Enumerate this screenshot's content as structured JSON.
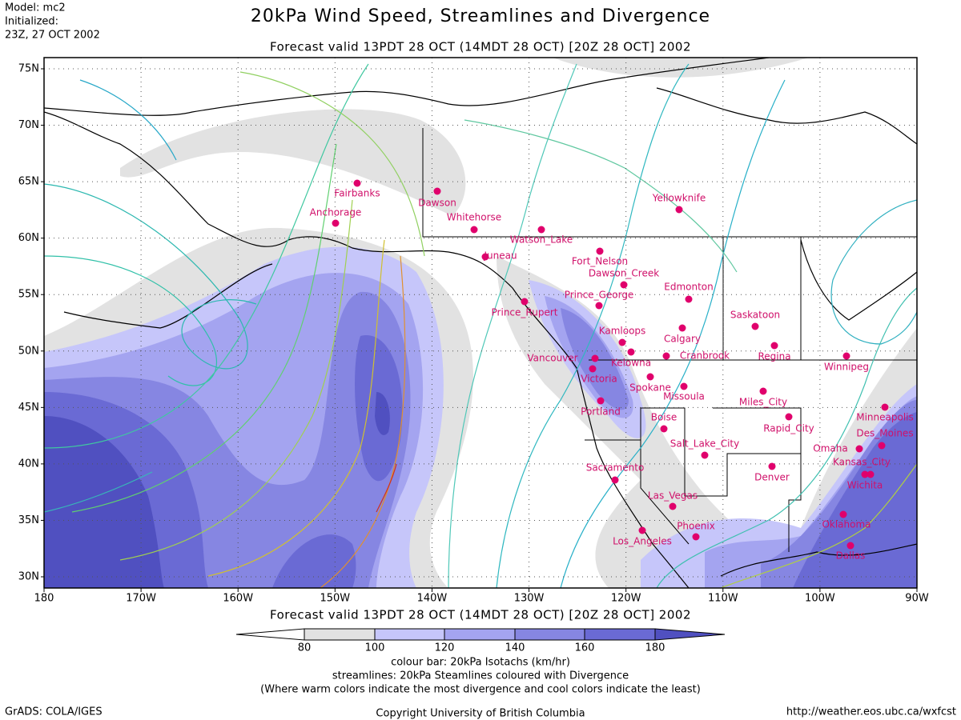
{
  "header": {
    "model": "Model: mc2",
    "initialized": "Initialized:",
    "init_time": "23Z, 27 OCT 2002",
    "title": "20kPa Wind Speed, Streamlines and Divergence",
    "valid_top": "Forecast valid 13PDT 28 OCT (14MDT 28 OCT) [20Z 28 OCT] 2002",
    "valid_bottom": "Forecast valid 13PDT 28 OCT (14MDT 28 OCT) [20Z 28 OCT] 2002"
  },
  "map": {
    "lat_labels": [
      "75N",
      "70N",
      "65N",
      "60N",
      "55N",
      "50N",
      "45N",
      "40N",
      "35N",
      "30N"
    ],
    "lon_labels": [
      "180",
      "170W",
      "160W",
      "150W",
      "140W",
      "130W",
      "120W",
      "110W",
      "100W",
      "90W"
    ],
    "cities": [
      "Fairbanks",
      "Dawson",
      "Anchorage",
      "Whitehorse",
      "Watson_Lake",
      "Juneau",
      "Fort_Nelson",
      "Dawson_Creek",
      "Prince_George",
      "Prince_Rupert",
      "Yellowknife",
      "Edmonton",
      "Kamloops",
      "Calgary",
      "Vancouver",
      "Kelowna",
      "Victoria",
      "Cranbrook",
      "Saskatoon",
      "Regina",
      "Winnipeg",
      "Spokane",
      "Missoula",
      "Portland",
      "Miles_City",
      "Boise",
      "Rapid_City",
      "Minneapolis",
      "Des_Moines",
      "Omaha",
      "Salt_Lake_City",
      "Sacramento",
      "Denver",
      "Kansas_City",
      "Wichita",
      "Las_Vegas",
      "Oklahoma",
      "Phoenix",
      "Los_Angeles",
      "Dallas"
    ]
  },
  "colorbar": {
    "labels": [
      80,
      100,
      120,
      140,
      160,
      180
    ],
    "caption": "colour bar: 20kPa Isotachs (km/hr)",
    "streamlines": "streamlines: 20kPa Steamlines coloured with Divergence",
    "note": "(Where warm colors indicate the most divergence and cool colors indicate the least)"
  },
  "footer": {
    "left": "GrADS: COLA/IGES",
    "center": "Copyright University of British Columbia",
    "right": "http://weather.eos.ubc.ca/wxfcst"
  }
}
